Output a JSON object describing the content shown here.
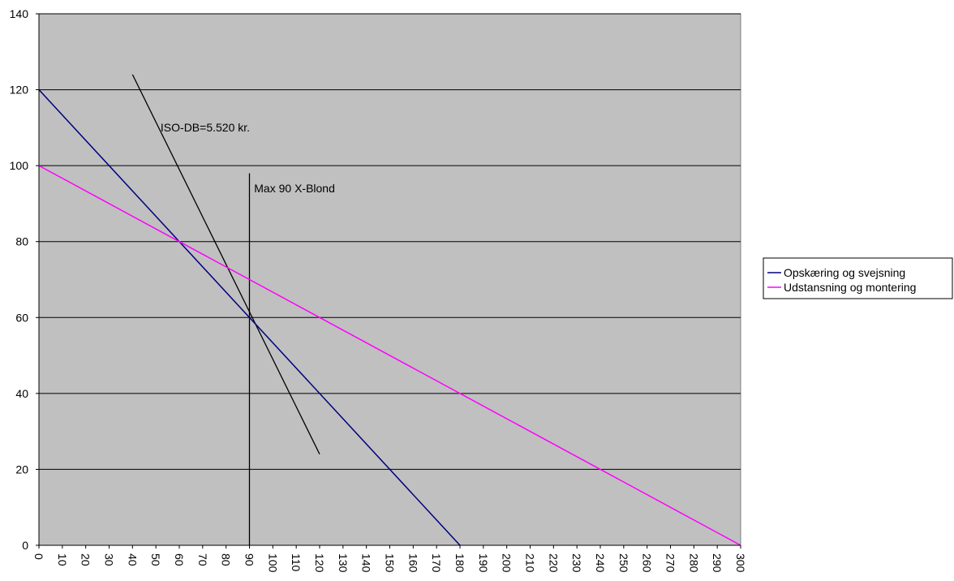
{
  "chart_data": {
    "type": "line",
    "title": "",
    "xlabel": "",
    "ylabel": "",
    "xlim": [
      0,
      300
    ],
    "ylim": [
      0,
      140
    ],
    "x_ticks": [
      0,
      10,
      20,
      30,
      40,
      50,
      60,
      70,
      80,
      90,
      100,
      110,
      120,
      130,
      140,
      150,
      160,
      170,
      180,
      190,
      200,
      210,
      220,
      230,
      240,
      250,
      260,
      270,
      280,
      290,
      300
    ],
    "y_ticks": [
      0,
      20,
      40,
      60,
      80,
      100,
      120,
      140
    ],
    "grid": "horizontal",
    "plot_background": "#c0c0c0",
    "legend_position": "right",
    "series": [
      {
        "name": "Opskæring og svejsning",
        "color": "#000080",
        "points": [
          [
            0,
            120
          ],
          [
            180,
            0
          ]
        ]
      },
      {
        "name": "Udstansning og montering",
        "color": "#ff00ff",
        "points": [
          [
            0,
            100
          ],
          [
            300,
            0
          ]
        ]
      }
    ],
    "annotations": [
      {
        "label": "ISO-DB=5.520 kr.",
        "color": "#000000",
        "points": [
          [
            40,
            124
          ],
          [
            120,
            24
          ]
        ],
        "label_at": [
          52,
          109
        ]
      },
      {
        "label": "Max 90 X-Blond",
        "color": "#000000",
        "points": [
          [
            90,
            0
          ],
          [
            90,
            98
          ]
        ],
        "label_at": [
          92,
          93
        ]
      }
    ]
  }
}
